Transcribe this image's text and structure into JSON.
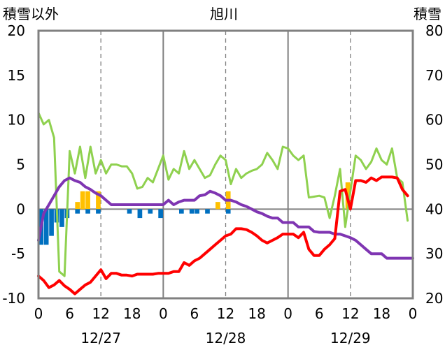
{
  "chart_data": {
    "type": "line",
    "title": "旭川",
    "left_axis_label": "積雪以外",
    "right_axis_label": "積雪",
    "left_ylim": [
      -10,
      20
    ],
    "left_ticks": [
      "20",
      "15",
      "10",
      "5",
      "0",
      "-5",
      "-10"
    ],
    "right_ylim": [
      20,
      80
    ],
    "right_ticks": [
      "80",
      "70",
      "60",
      "50",
      "40",
      "30",
      "20"
    ],
    "x_range": [
      0,
      72
    ],
    "x_ticks": [
      {
        "x": 0,
        "label": "0"
      },
      {
        "x": 6,
        "label": "6"
      },
      {
        "x": 12,
        "label": "12"
      },
      {
        "x": 18,
        "label": "18"
      },
      {
        "x": 24,
        "label": "0"
      },
      {
        "x": 30,
        "label": "6"
      },
      {
        "x": 36,
        "label": "12"
      },
      {
        "x": 42,
        "label": "18"
      },
      {
        "x": 48,
        "label": "0"
      },
      {
        "x": 54,
        "label": "6"
      },
      {
        "x": 60,
        "label": "12"
      },
      {
        "x": 66,
        "label": "18"
      },
      {
        "x": 72,
        "label": "0"
      }
    ],
    "date_labels": [
      {
        "x": 12,
        "label": "12/27"
      },
      {
        "x": 36,
        "label": "12/28"
      },
      {
        "x": 60,
        "label": "12/29"
      }
    ],
    "grid": "dashed vertical at 12h, solid vertical at 0h",
    "bars_positive": [
      [
        7.5,
        0.8
      ],
      [
        8.5,
        2.0
      ],
      [
        9.5,
        2.0
      ],
      [
        11.5,
        2.0
      ],
      [
        34.5,
        0.8
      ],
      [
        36.5,
        2.0
      ],
      [
        59.5,
        3.0
      ]
    ],
    "bars_negative": [
      [
        0.5,
        -4.0
      ],
      [
        1.5,
        -4.0
      ],
      [
        2.5,
        -3.0
      ],
      [
        3.5,
        -1.5
      ],
      [
        4.5,
        -2.0
      ],
      [
        5.5,
        -1.0
      ],
      [
        7.5,
        -0.5
      ],
      [
        9.5,
        -0.5
      ],
      [
        11.5,
        -0.5
      ],
      [
        17.5,
        -0.5
      ],
      [
        19.5,
        -1.0
      ],
      [
        21.5,
        -0.5
      ],
      [
        23.5,
        -1.0
      ],
      [
        27.5,
        -0.5
      ],
      [
        29.5,
        -0.5
      ],
      [
        30.5,
        -0.5
      ],
      [
        32.5,
        -0.5
      ],
      [
        36.5,
        -0.5
      ]
    ],
    "series": [
      {
        "color": "#8fd14f",
        "axis": "left",
        "points": [
          [
            0,
            10.8
          ],
          [
            1,
            9.5
          ],
          [
            2,
            10.0
          ],
          [
            3,
            8.0
          ],
          [
            4,
            -7.0
          ],
          [
            5,
            -7.5
          ],
          [
            6,
            6.5
          ],
          [
            7,
            4.0
          ],
          [
            8,
            7.0
          ],
          [
            9,
            3.5
          ],
          [
            10,
            7.0
          ],
          [
            11,
            4.0
          ],
          [
            12,
            5.5
          ],
          [
            13,
            4.0
          ],
          [
            14,
            5.0
          ],
          [
            15,
            5.0
          ],
          [
            16,
            4.8
          ],
          [
            17,
            4.8
          ],
          [
            18,
            4.0
          ],
          [
            19,
            2.3
          ],
          [
            20,
            2.5
          ],
          [
            21,
            3.5
          ],
          [
            22,
            3.0
          ],
          [
            23,
            4.5
          ],
          [
            24,
            6.0
          ],
          [
            25,
            3.3
          ],
          [
            26,
            4.5
          ],
          [
            27,
            4.0
          ],
          [
            28,
            6.5
          ],
          [
            29,
            4.5
          ],
          [
            30,
            5.5
          ],
          [
            31,
            4.5
          ],
          [
            32,
            3.5
          ],
          [
            33,
            3.8
          ],
          [
            34,
            5.0
          ],
          [
            35,
            6.0
          ],
          [
            36,
            5.5
          ],
          [
            37,
            2.8
          ],
          [
            38,
            4.5
          ],
          [
            39,
            3.5
          ],
          [
            40,
            4.0
          ],
          [
            41,
            4.3
          ],
          [
            42,
            4.5
          ],
          [
            43,
            5.0
          ],
          [
            44,
            6.3
          ],
          [
            45,
            5.5
          ],
          [
            46,
            4.5
          ],
          [
            47,
            7.0
          ],
          [
            48,
            6.8
          ],
          [
            49,
            6.0
          ],
          [
            50,
            5.5
          ],
          [
            51,
            6.0
          ],
          [
            52,
            1.3
          ],
          [
            53,
            1.4
          ],
          [
            54,
            1.5
          ],
          [
            55,
            1.3
          ],
          [
            56,
            -1.0
          ],
          [
            57,
            1.5
          ],
          [
            58,
            4.5
          ],
          [
            59,
            -2.0
          ],
          [
            60,
            2.0
          ],
          [
            61,
            6.0
          ],
          [
            62,
            5.5
          ],
          [
            63,
            4.5
          ],
          [
            64,
            5.3
          ],
          [
            65,
            6.8
          ],
          [
            66,
            5.5
          ],
          [
            67,
            5.0
          ],
          [
            68,
            6.8
          ],
          [
            69,
            3.5
          ],
          [
            70,
            3.0
          ],
          [
            71,
            -1.3
          ]
        ]
      },
      {
        "color": "#7f35b2",
        "axis": "left",
        "points": [
          [
            0,
            -3.5
          ],
          [
            1,
            -0.5
          ],
          [
            2,
            0.5
          ],
          [
            3,
            1.5
          ],
          [
            4,
            2.5
          ],
          [
            5,
            3.2
          ],
          [
            6,
            3.5
          ],
          [
            7,
            3.2
          ],
          [
            8,
            3.0
          ],
          [
            9,
            2.5
          ],
          [
            10,
            2.2
          ],
          [
            11,
            1.8
          ],
          [
            12,
            1.5
          ],
          [
            13,
            1.0
          ],
          [
            14,
            0.5
          ],
          [
            24,
            0.5
          ],
          [
            25,
            1.0
          ],
          [
            26,
            0.5
          ],
          [
            27,
            0.8
          ],
          [
            28,
            1.0
          ],
          [
            30,
            1.0
          ],
          [
            31,
            1.5
          ],
          [
            32,
            1.6
          ],
          [
            33,
            2.0
          ],
          [
            34,
            1.8
          ],
          [
            35,
            1.5
          ],
          [
            36,
            1.0
          ],
          [
            37,
            1.0
          ],
          [
            38,
            0.8
          ],
          [
            39,
            0.5
          ],
          [
            40,
            0.3
          ],
          [
            41,
            0.0
          ],
          [
            42,
            -0.3
          ],
          [
            43,
            -0.5
          ],
          [
            44,
            -0.8
          ],
          [
            45,
            -1.0
          ],
          [
            46,
            -1.0
          ],
          [
            47,
            -1.5
          ],
          [
            48,
            -1.5
          ],
          [
            49,
            -1.5
          ],
          [
            50,
            -2.0
          ],
          [
            51,
            -2.0
          ],
          [
            52,
            -2.0
          ],
          [
            53,
            -2.5
          ],
          [
            54,
            -2.6
          ],
          [
            55,
            -2.6
          ],
          [
            56,
            -2.6
          ],
          [
            57,
            -2.8
          ],
          [
            58,
            -2.8
          ],
          [
            59,
            -3.0
          ],
          [
            60,
            -3.2
          ],
          [
            61,
            -3.5
          ],
          [
            62,
            -4.0
          ],
          [
            63,
            -4.5
          ],
          [
            64,
            -5.0
          ],
          [
            65,
            -5.0
          ],
          [
            66,
            -5.0
          ],
          [
            67,
            -5.5
          ],
          [
            68,
            -5.5
          ],
          [
            70,
            -5.5
          ],
          [
            71,
            -5.5
          ],
          [
            72,
            -5.5
          ]
        ]
      },
      {
        "color": "#ff0000",
        "axis": "left",
        "points": [
          [
            0,
            -7.5
          ],
          [
            1,
            -8.0
          ],
          [
            2,
            -8.8
          ],
          [
            3,
            -8.5
          ],
          [
            4,
            -8.0
          ],
          [
            5,
            -8.6
          ],
          [
            6,
            -9.0
          ],
          [
            7,
            -9.5
          ],
          [
            8,
            -9.0
          ],
          [
            9,
            -8.5
          ],
          [
            10,
            -8.2
          ],
          [
            11,
            -7.5
          ],
          [
            12,
            -6.8
          ],
          [
            13,
            -7.8
          ],
          [
            14,
            -7.2
          ],
          [
            15,
            -7.2
          ],
          [
            16,
            -7.4
          ],
          [
            17,
            -7.4
          ],
          [
            18,
            -7.5
          ],
          [
            19,
            -7.3
          ],
          [
            20,
            -7.3
          ],
          [
            21,
            -7.3
          ],
          [
            22,
            -7.3
          ],
          [
            23,
            -7.2
          ],
          [
            24,
            -7.2
          ],
          [
            25,
            -7.2
          ],
          [
            26,
            -7.0
          ],
          [
            27,
            -7.0
          ],
          [
            28,
            -6.0
          ],
          [
            29,
            -6.3
          ],
          [
            30,
            -5.8
          ],
          [
            31,
            -5.5
          ],
          [
            32,
            -5.0
          ],
          [
            33,
            -4.5
          ],
          [
            34,
            -4.0
          ],
          [
            35,
            -3.5
          ],
          [
            36,
            -3.0
          ],
          [
            37,
            -2.8
          ],
          [
            38,
            -2.2
          ],
          [
            39,
            -2.2
          ],
          [
            40,
            -2.3
          ],
          [
            41,
            -2.6
          ],
          [
            42,
            -3.0
          ],
          [
            43,
            -3.5
          ],
          [
            44,
            -3.8
          ],
          [
            45,
            -3.5
          ],
          [
            46,
            -3.2
          ],
          [
            47,
            -2.8
          ],
          [
            48,
            -2.8
          ],
          [
            49,
            -2.8
          ],
          [
            50,
            -3.2
          ],
          [
            51,
            -2.6
          ],
          [
            52,
            -4.5
          ],
          [
            53,
            -5.2
          ],
          [
            54,
            -5.2
          ],
          [
            55,
            -4.5
          ],
          [
            56,
            -4.0
          ],
          [
            57,
            -3.3
          ],
          [
            58,
            2.0
          ],
          [
            59,
            2.2
          ],
          [
            60,
            0.0
          ],
          [
            61,
            3.2
          ],
          [
            62,
            3.2
          ],
          [
            63,
            3.0
          ],
          [
            64,
            3.5
          ],
          [
            65,
            3.2
          ],
          [
            66,
            3.6
          ],
          [
            67,
            3.6
          ],
          [
            68,
            3.6
          ],
          [
            69,
            3.5
          ],
          [
            70,
            2.2
          ],
          [
            71,
            1.5
          ]
        ]
      }
    ]
  }
}
